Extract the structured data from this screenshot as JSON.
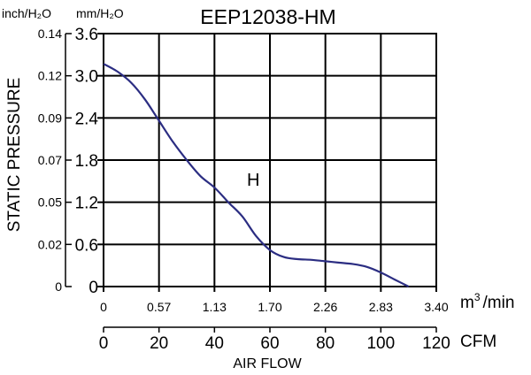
{
  "chart_data": {
    "type": "line",
    "title": "EEP12038-HM",
    "units_inch_h2o": "inch/H₂O",
    "units_mm_h2o": "mm/H₂O",
    "ylabel": "STATIC PRESSURE",
    "xlabel": "AIR FLOW",
    "unit_m3": "m",
    "unit_m3_sup": "3",
    "unit_m3_suffix": "/min",
    "unit_cfm": "CFM",
    "y_mm_ticks": [
      "0",
      "0.6",
      "1.2",
      "1.8",
      "2.4",
      "3.0",
      "3.6"
    ],
    "y_inch_ticks": [
      "0",
      "0.02",
      "0.05",
      "0.07",
      "0.09",
      "0.12",
      "0.14"
    ],
    "x_m3_ticks": [
      "0",
      "0.57",
      "1.13",
      "1.70",
      "2.26",
      "2.83",
      "3.40"
    ],
    "x_cfm_ticks": [
      "0",
      "20",
      "40",
      "60",
      "80",
      "100",
      "120"
    ],
    "xlim": [
      0,
      120
    ],
    "ylim": [
      0,
      3.6
    ],
    "grid": true,
    "series": [
      {
        "name": "H",
        "color": "#2b2d82",
        "x": [
          0,
          5,
          10,
          15,
          20,
          25,
          30,
          35,
          40,
          45,
          50,
          55,
          60,
          65,
          70,
          75,
          80,
          85,
          90,
          95,
          100,
          105,
          110
        ],
        "y": [
          3.17,
          3.06,
          2.9,
          2.66,
          2.36,
          2.06,
          1.8,
          1.57,
          1.41,
          1.2,
          1.0,
          0.72,
          0.52,
          0.42,
          0.39,
          0.38,
          0.36,
          0.34,
          0.32,
          0.28,
          0.2,
          0.1,
          0.0
        ]
      }
    ]
  }
}
